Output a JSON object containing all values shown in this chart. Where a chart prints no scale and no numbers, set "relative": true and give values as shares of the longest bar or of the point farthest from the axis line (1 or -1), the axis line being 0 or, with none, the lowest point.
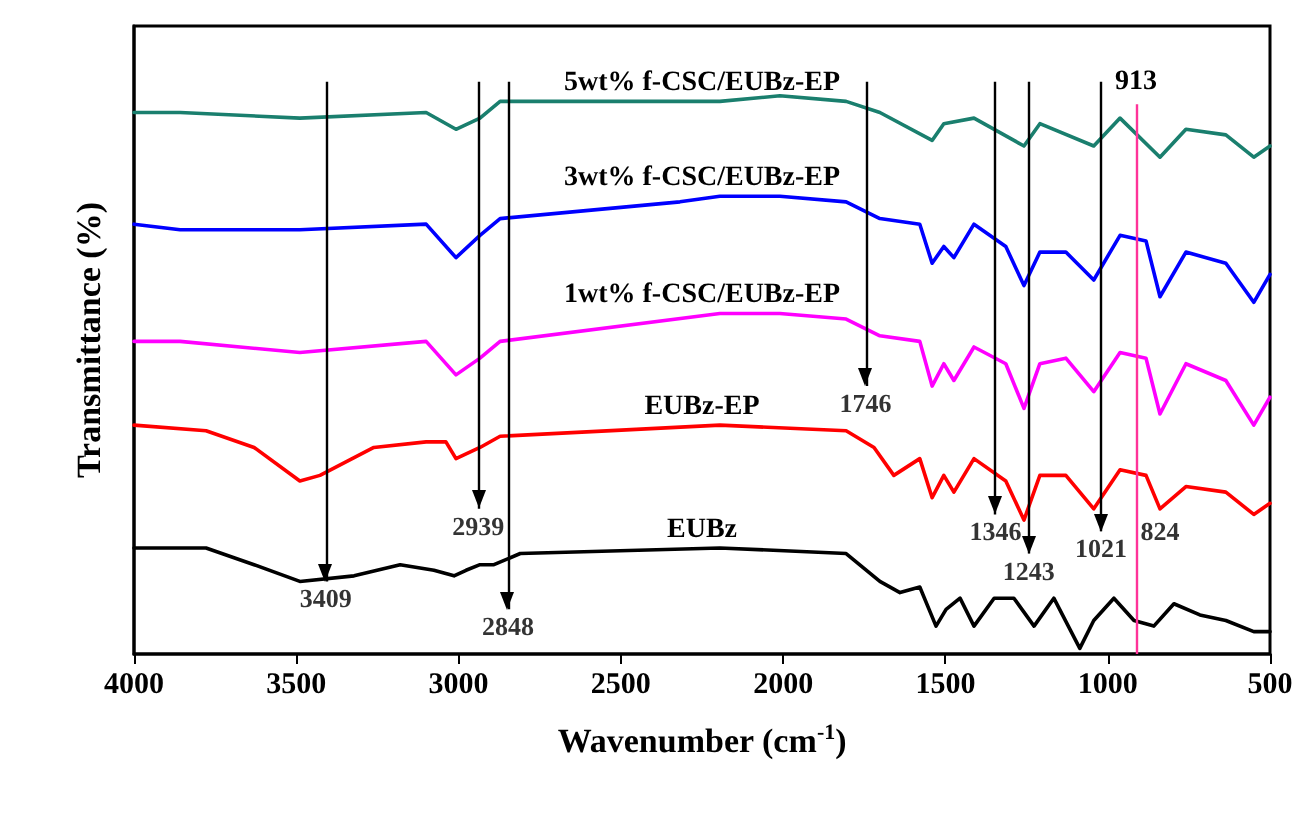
{
  "chart_data": {
    "type": "line",
    "relative": true,
    "xlabel": "Wavenumber (cm$^{-1}$)",
    "ylabel": "Transmittance (%)",
    "xlim": [
      4000,
      500
    ],
    "xticks": [
      4000,
      3500,
      3000,
      2500,
      2000,
      1500,
      1000,
      500
    ],
    "grid": false,
    "legend": false,
    "marker": "none",
    "line_style": "solid",
    "tick_labels": "x",
    "series": [
      {
        "name": "EUBz",
        "color": "#000000",
        "x": [
          4000,
          3778,
          3630,
          3489,
          3322,
          3180,
          3076,
          3014,
          2977,
          2934,
          2891,
          2810,
          2195,
          1806,
          1702,
          1640,
          1579,
          1529,
          1498,
          1455,
          1412,
          1350,
          1289,
          1227,
          1166,
          1086,
          1043,
          981,
          919,
          858,
          796,
          716,
          636,
          550,
          500
        ],
        "values": [
          0.19,
          0.19,
          0.16,
          0.13,
          0.14,
          0.16,
          0.15,
          0.14,
          0.15,
          0.16,
          0.16,
          0.18,
          0.19,
          0.18,
          0.13,
          0.11,
          0.12,
          0.05,
          0.08,
          0.1,
          0.05,
          0.1,
          0.1,
          0.05,
          0.1,
          0.01,
          0.06,
          0.1,
          0.06,
          0.05,
          0.09,
          0.07,
          0.06,
          0.04,
          0.04
        ]
      },
      {
        "name": "EUBz-EP",
        "color": "#ff0000",
        "x": [
          4000,
          3778,
          3630,
          3489,
          3427,
          3261,
          3100,
          3039,
          3008,
          2934,
          2872,
          2195,
          1806,
          1720,
          1659,
          1579,
          1541,
          1505,
          1474,
          1412,
          1314,
          1258,
          1209,
          1129,
          1043,
          962,
          882,
          839,
          759,
          636,
          550,
          500
        ],
        "values": [
          0.41,
          0.4,
          0.37,
          0.31,
          0.32,
          0.37,
          0.38,
          0.38,
          0.35,
          0.37,
          0.39,
          0.41,
          0.4,
          0.37,
          0.32,
          0.35,
          0.28,
          0.32,
          0.29,
          0.35,
          0.31,
          0.24,
          0.32,
          0.32,
          0.26,
          0.33,
          0.32,
          0.26,
          0.3,
          0.29,
          0.25,
          0.27
        ]
      },
      {
        "name": "1wt% f-CSC/EUBz-EP",
        "color": "#ff00ff",
        "x": [
          4000,
          3858,
          3489,
          3100,
          3008,
          2934,
          2872,
          2195,
          2010,
          1806,
          1702,
          1579,
          1541,
          1505,
          1474,
          1412,
          1314,
          1258,
          1209,
          1129,
          1043,
          962,
          882,
          839,
          759,
          636,
          550,
          500
        ],
        "values": [
          0.56,
          0.56,
          0.54,
          0.56,
          0.5,
          0.53,
          0.56,
          0.61,
          0.61,
          0.6,
          0.57,
          0.56,
          0.48,
          0.52,
          0.49,
          0.55,
          0.52,
          0.44,
          0.52,
          0.53,
          0.47,
          0.54,
          0.53,
          0.43,
          0.52,
          0.49,
          0.41,
          0.46
        ]
      },
      {
        "name": "3wt% f-CSC/EUBz-EP",
        "color": "#0000ff",
        "x": [
          4000,
          3858,
          3489,
          3100,
          3008,
          2934,
          2872,
          2318,
          2195,
          2010,
          1806,
          1702,
          1579,
          1541,
          1505,
          1474,
          1412,
          1314,
          1258,
          1209,
          1129,
          1043,
          962,
          882,
          839,
          759,
          636,
          550,
          500
        ],
        "values": [
          0.77,
          0.76,
          0.76,
          0.77,
          0.71,
          0.75,
          0.78,
          0.81,
          0.82,
          0.82,
          0.81,
          0.78,
          0.77,
          0.7,
          0.73,
          0.71,
          0.77,
          0.73,
          0.66,
          0.72,
          0.72,
          0.67,
          0.75,
          0.74,
          0.64,
          0.72,
          0.7,
          0.63,
          0.68
        ]
      },
      {
        "name": "5wt% f-CSC/EUBz-EP",
        "color": "#1a7f6e",
        "x": [
          4000,
          3858,
          3489,
          3100,
          3008,
          2934,
          2872,
          2318,
          2195,
          2010,
          1806,
          1702,
          1541,
          1505,
          1412,
          1258,
          1209,
          1043,
          962,
          839,
          759,
          636,
          550,
          500
        ],
        "values": [
          0.97,
          0.97,
          0.96,
          0.97,
          0.94,
          0.96,
          0.99,
          0.99,
          0.99,
          1.0,
          0.99,
          0.97,
          0.92,
          0.95,
          0.96,
          0.91,
          0.95,
          0.91,
          0.96,
          0.89,
          0.94,
          0.93,
          0.89,
          0.91
        ]
      }
    ],
    "ref_lines": [
      {
        "axis": "x",
        "value": 3409,
        "color": "#000000"
      },
      {
        "axis": "x",
        "value": 2939,
        "color": "#000000"
      },
      {
        "axis": "x",
        "value": 2848,
        "color": "#000000"
      },
      {
        "axis": "x",
        "value": 1746,
        "color": "#000000"
      },
      {
        "axis": "x",
        "value": 1346,
        "color": "#000000"
      },
      {
        "axis": "x",
        "value": 1243,
        "color": "#000000"
      },
      {
        "axis": "x",
        "value": 1021,
        "color": "#000000"
      },
      {
        "axis": "x",
        "value": 913,
        "label": "913",
        "color": "#ff3399"
      }
    ],
    "annotations": [
      {
        "text": "3409",
        "x": 3409,
        "y": 0.13
      },
      {
        "text": "2939",
        "x": 2939,
        "y": 0.26
      },
      {
        "text": "2848",
        "x": 2848,
        "y": 0.08
      },
      {
        "text": "1746",
        "x": 1746,
        "y": 0.48
      },
      {
        "text": "1346",
        "x": 1346,
        "y": 0.25
      },
      {
        "text": "1243",
        "x": 1243,
        "y": 0.18
      },
      {
        "text": "1021",
        "x": 1021,
        "y": 0.22
      },
      {
        "text": "824",
        "x": 839,
        "y": 0.25
      }
    ]
  }
}
